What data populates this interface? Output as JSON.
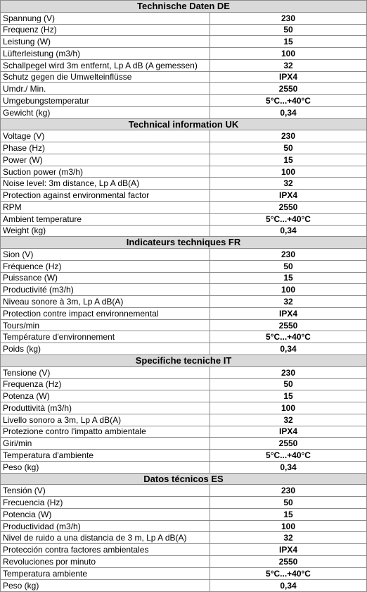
{
  "sections": [
    {
      "title": "Technische Daten DE",
      "rows": [
        [
          "Spannung (V)",
          "230"
        ],
        [
          "Frequenz (Hz)",
          "50"
        ],
        [
          "Leistung (W)",
          "15"
        ],
        [
          "Lüfterleistung (m3/h)",
          "100"
        ],
        [
          "Schallpegel wird 3m entfernt, Lp A dB (A gemessen)",
          "32"
        ],
        [
          "Schutz gegen die Umwelteinflüsse",
          "IPX4"
        ],
        [
          "Umdr./ Min.",
          "2550"
        ],
        [
          "Umgebungstemperatur",
          "5°C...+40°C"
        ],
        [
          "Gewicht (kg)",
          "0,34"
        ]
      ]
    },
    {
      "title": "Technical information UK",
      "rows": [
        [
          "Voltage (V)",
          "230"
        ],
        [
          "Phase (Hz)",
          "50"
        ],
        [
          "Power (W)",
          "15"
        ],
        [
          "Suction power (m3/h)",
          "100"
        ],
        [
          "Noise level: 3m distance, Lp A dB(A)",
          "32"
        ],
        [
          "Protection against environmental factor",
          "IPX4"
        ],
        [
          "RPM",
          "2550"
        ],
        [
          "Ambient temperature",
          "5°C...+40°C"
        ],
        [
          "Weight (kg)",
          "0,34"
        ]
      ]
    },
    {
      "title": "Indicateurs techniques FR",
      "rows": [
        [
          "Sion (V)",
          "230"
        ],
        [
          "Fréquence (Hz)",
          "50"
        ],
        [
          "Puissance (W)",
          "15"
        ],
        [
          "Productivité (m3/h)",
          "100"
        ],
        [
          "Niveau sonore à 3m, Lp A dB(A)",
          "32"
        ],
        [
          "Protection contre impact environnemental",
          "IPX4"
        ],
        [
          "Tours/min",
          "2550"
        ],
        [
          "Température d'environnement",
          "5°C...+40°C"
        ],
        [
          "Poids (kg)",
          "0,34"
        ]
      ]
    },
    {
      "title": "Specifiche tecniche IT",
      "rows": [
        [
          "Tensione (V)",
          "230"
        ],
        [
          "Frequenza (Hz)",
          "50"
        ],
        [
          "Potenza (W)",
          "15"
        ],
        [
          "Produttività (m3/h)",
          "100"
        ],
        [
          "Livello sonoro a 3m, Lp A dB(A)",
          "32"
        ],
        [
          "Protezione contro l'impatto ambientale",
          "IPX4"
        ],
        [
          "Giri/min",
          "2550"
        ],
        [
          "Temperatura d'ambiente",
          "5°C...+40°C"
        ],
        [
          "Peso (kg)",
          "0,34"
        ]
      ]
    },
    {
      "title": "Datos técnicos ES",
      "rows": [
        [
          "Tensión (V)",
          "230"
        ],
        [
          "Frecuencia (Hz)",
          "50"
        ],
        [
          "Potencia (W)",
          "15"
        ],
        [
          "Productividad (m3/h)",
          "100"
        ],
        [
          "Nivel de ruido a una distancia de 3 m, Lp A dB(A)",
          "32"
        ],
        [
          "Protección contra factores ambientales",
          "IPX4"
        ],
        [
          "Revoluciones por minuto",
          "2550"
        ],
        [
          "Temperatura ambiente",
          "5°C...+40°C"
        ],
        [
          "Peso (kg)",
          "0,34"
        ]
      ]
    }
  ]
}
